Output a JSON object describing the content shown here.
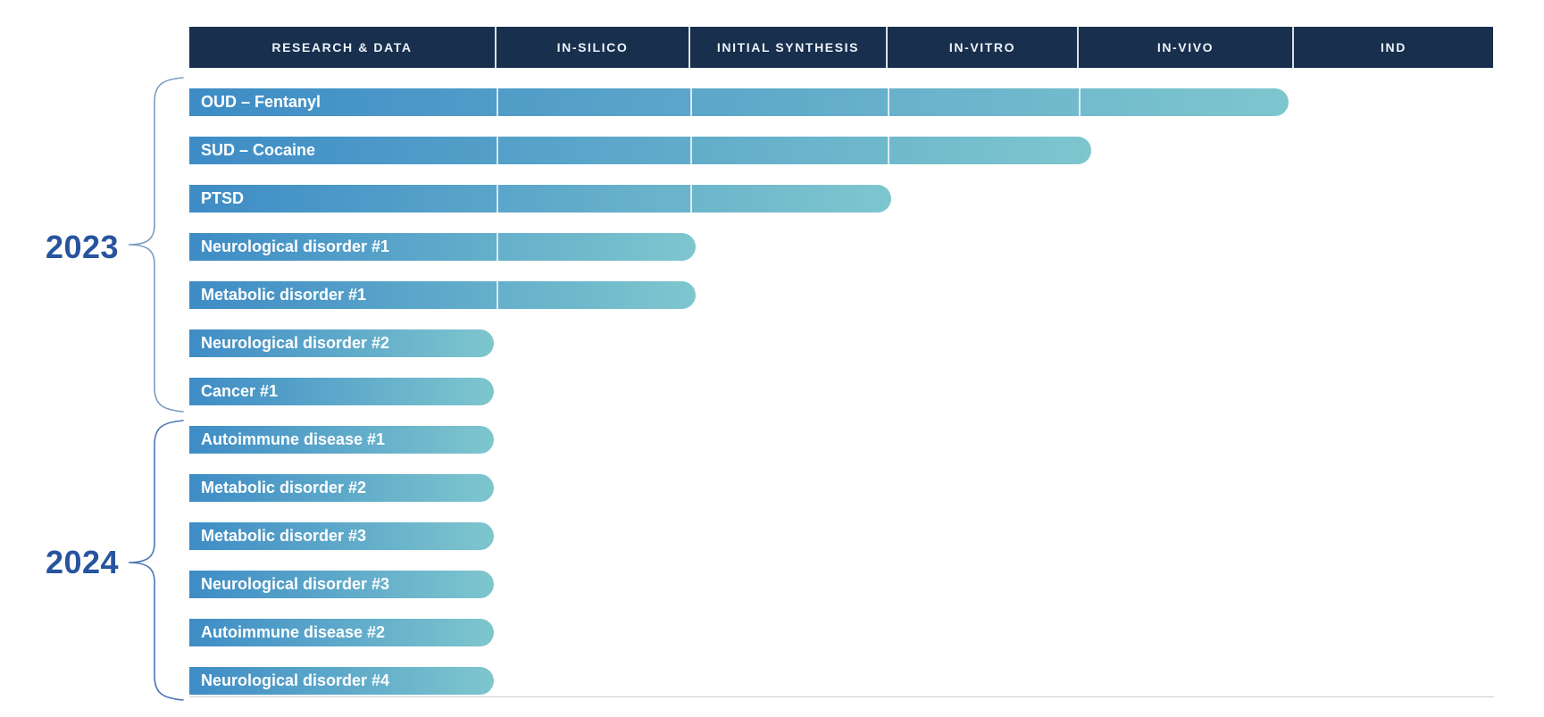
{
  "header": {
    "columns": [
      "RESEARCH & DATA",
      "IN-SILICO",
      "INITIAL SYNTHESIS",
      "IN-VITRO",
      "IN-VIVO",
      "IND"
    ]
  },
  "groups": [
    {
      "year": "2023"
    },
    {
      "year": "2024"
    }
  ],
  "colors": {
    "header_bg": "#182f4d",
    "header_text": "#edf2f8",
    "bar_gradient_start": "#3e8cc6",
    "bar_gradient_end": "#7ec6ce",
    "bar_text": "#ffffff",
    "year_text": "#27549f",
    "brace_2023": "#7c9cc0",
    "brace_2024": "#4a77b5",
    "baseline": "#ccd0d4"
  },
  "chart_data": {
    "type": "bar",
    "orientation": "horizontal",
    "title": "",
    "x_stages": [
      "RESEARCH & DATA",
      "IN-SILICO",
      "INITIAL SYNTHESIS",
      "IN-VITRO",
      "IN-VIVO",
      "IND"
    ],
    "legend_position": "none",
    "grid": false,
    "programs": [
      {
        "name": "OUD – Fentanyl",
        "year": "2023",
        "stages_completed": 5
      },
      {
        "name": "SUD – Cocaine",
        "year": "2023",
        "stages_completed": 4
      },
      {
        "name": "PTSD",
        "year": "2023",
        "stages_completed": 3
      },
      {
        "name": "Neurological disorder #1",
        "year": "2023",
        "stages_completed": 2
      },
      {
        "name": "Metabolic disorder #1",
        "year": "2023",
        "stages_completed": 2
      },
      {
        "name": "Neurological disorder #2",
        "year": "2023",
        "stages_completed": 1
      },
      {
        "name": "Cancer #1",
        "year": "2023",
        "stages_completed": 1
      },
      {
        "name": "Autoimmune disease #1",
        "year": "2024",
        "stages_completed": 1
      },
      {
        "name": "Metabolic disorder #2",
        "year": "2024",
        "stages_completed": 1
      },
      {
        "name": "Metabolic disorder #3",
        "year": "2024",
        "stages_completed": 1
      },
      {
        "name": "Neurological disorder #3",
        "year": "2024",
        "stages_completed": 1
      },
      {
        "name": "Autoimmune disease #2",
        "year": "2024",
        "stages_completed": 1
      },
      {
        "name": "Neurological disorder #4",
        "year": "2024",
        "stages_completed": 1
      }
    ]
  }
}
